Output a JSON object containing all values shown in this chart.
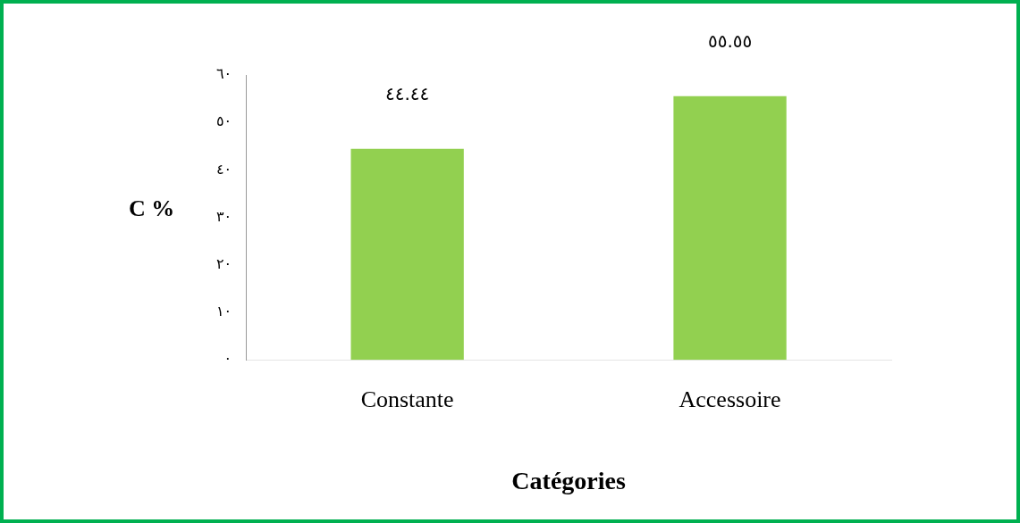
{
  "chart_data": {
    "type": "bar",
    "xlabel": "Catégories",
    "ylabel": "C %",
    "categories": [
      "Constante",
      "Accessoire"
    ],
    "series": [
      {
        "color": "#92d050",
        "values": [
          44.44,
          55.55
        ],
        "value_labels": [
          "٤٤.٤٤",
          "٥٥.٥٥"
        ]
      }
    ],
    "ylim": [
      0,
      60
    ],
    "yticks": [
      {
        "value": 0,
        "label": "٠"
      },
      {
        "value": 10,
        "label": "١٠"
      },
      {
        "value": 20,
        "label": "٢٠"
      },
      {
        "value": 30,
        "label": "٣٠"
      },
      {
        "value": 40,
        "label": "٤٠"
      },
      {
        "value": 50,
        "label": "٥٠"
      },
      {
        "value": 60,
        "label": "٦٠"
      }
    ],
    "grid": false,
    "legend": false
  }
}
